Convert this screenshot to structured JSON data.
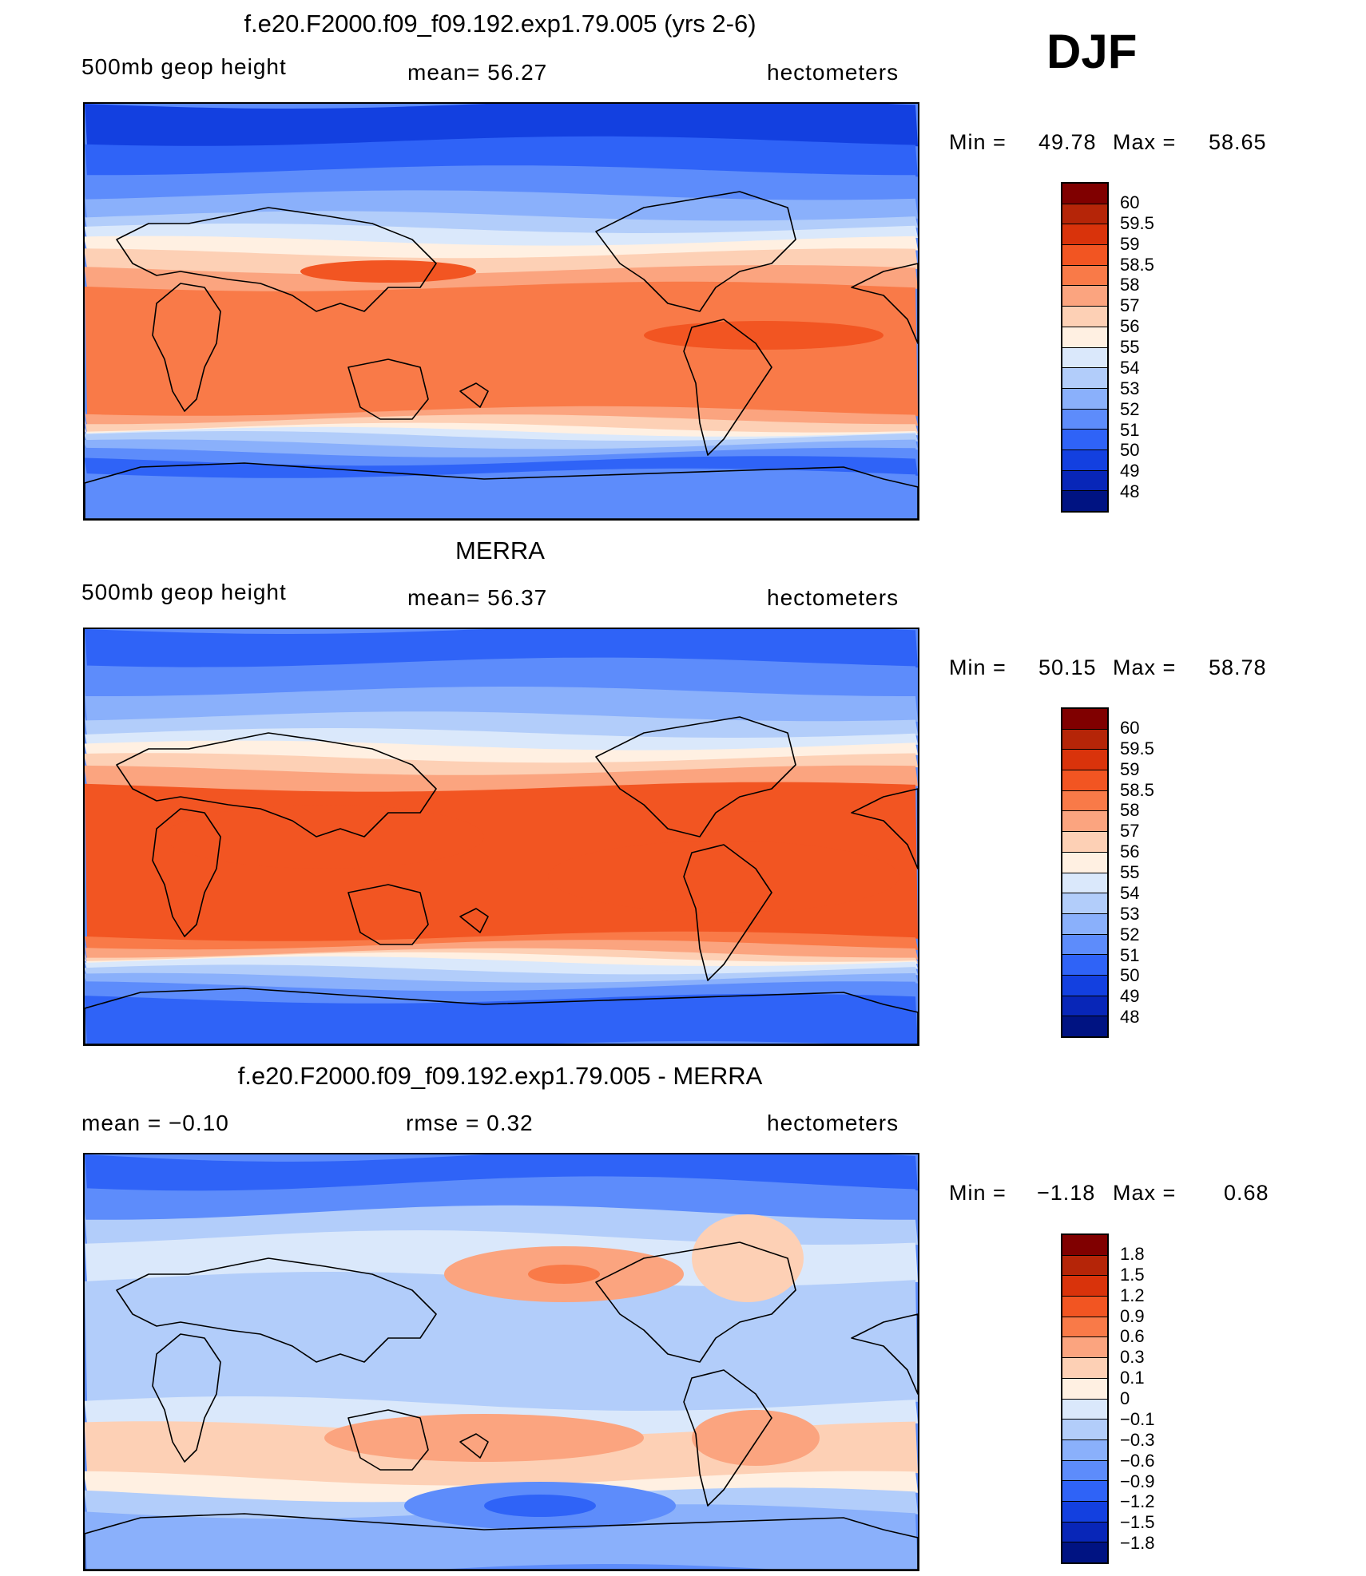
{
  "season": "DJF",
  "panels": [
    {
      "title": "f.e20.F2000.f09_f09.192.exp1.79.005 (yrs 2-6)",
      "left_label": "500mb  geop  height",
      "center_label": "mean=   56.27",
      "right_label": "hectometers",
      "min_label": "Min  =",
      "min_value": "49.78",
      "max_label": "Max  =",
      "max_value": "58.65",
      "scheme": "abs",
      "levels": [
        "60",
        "59.5",
        "59",
        "58.5",
        "58",
        "57",
        "56",
        "55",
        "54",
        "53",
        "52",
        "51",
        "50",
        "49",
        "48"
      ],
      "colors": [
        "#800000",
        "#b52508",
        "#d9330b",
        "#f25522",
        "#f97a48",
        "#fba47f",
        "#fdd0b5",
        "#fff0e2",
        "#dae8fb",
        "#b2cdfa",
        "#8ab0fb",
        "#5d8cfb",
        "#2f63f7",
        "#1340e0",
        "#0826b8",
        "#001382"
      ]
    },
    {
      "title": "MERRA",
      "left_label": "500mb  geop  height",
      "center_label": "mean=   56.37",
      "right_label": "hectometers",
      "min_label": "Min  =",
      "min_value": "50.15",
      "max_label": "Max  =",
      "max_value": "58.78",
      "scheme": "abs",
      "levels": [
        "60",
        "59.5",
        "59",
        "58.5",
        "58",
        "57",
        "56",
        "55",
        "54",
        "53",
        "52",
        "51",
        "50",
        "49",
        "48"
      ],
      "colors": [
        "#800000",
        "#b52508",
        "#d9330b",
        "#f25522",
        "#f97a48",
        "#fba47f",
        "#fdd0b5",
        "#fff0e2",
        "#dae8fb",
        "#b2cdfa",
        "#8ab0fb",
        "#5d8cfb",
        "#2f63f7",
        "#1340e0",
        "#0826b8",
        "#001382"
      ]
    },
    {
      "title": "f.e20.F2000.f09_f09.192.exp1.79.005 - MERRA",
      "left_label": "mean  =    −0.10",
      "center_label": "rmse  =     0.32",
      "right_label": "hectometers",
      "min_label": "Min  =",
      "min_value": "−1.18",
      "max_label": "Max  =",
      "max_value": "0.68",
      "scheme": "diff",
      "levels": [
        "1.8",
        "1.5",
        "1.2",
        "0.9",
        "0.6",
        "0.3",
        "0.1",
        "0",
        "−0.1",
        "−0.3",
        "−0.6",
        "−0.9",
        "−1.2",
        "−1.5",
        "−1.8"
      ],
      "colors": [
        "#800000",
        "#b52508",
        "#d9330b",
        "#f25522",
        "#f97a48",
        "#fba47f",
        "#fdd0b5",
        "#fff0e2",
        "#dae8fb",
        "#b2cdfa",
        "#8ab0fb",
        "#5d8cfb",
        "#2f63f7",
        "#1340e0",
        "#0826b8",
        "#001382"
      ]
    }
  ]
}
